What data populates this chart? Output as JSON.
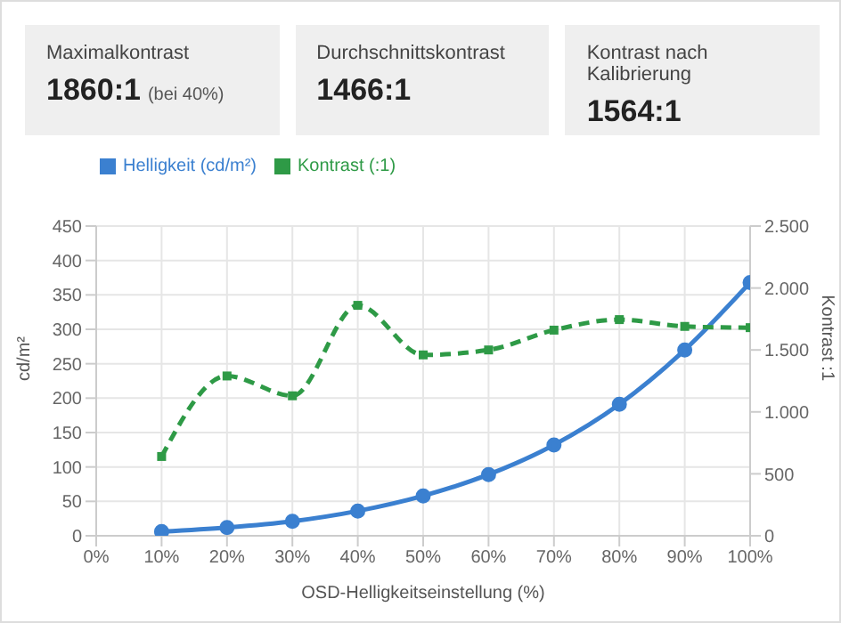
{
  "chart_data": [
    {
      "type": "other",
      "categories": [
        "Maximalkontrast",
        "Durchschnittskontrast",
        "Kontrast nach Kalibrierung"
      ],
      "value_labels": [
        "1860:1",
        "1466:1",
        "1564:1"
      ],
      "annotations": [
        "(bei 40%)"
      ]
    },
    {
      "type": "line",
      "x": [
        10,
        20,
        30,
        40,
        50,
        60,
        70,
        80,
        90,
        100
      ],
      "xlabel": "OSD-Helligkeitseinstellung (%)",
      "ylabel": "cd/m²",
      "y2label": "Kontrast :1",
      "series": [
        {
          "name": "Helligkeit (cd/m²)",
          "color": "#3b80d0",
          "values": [
            6,
            12,
            21,
            36,
            58,
            89,
            132,
            191,
            270,
            368
          ],
          "marker": "circle",
          "line_style": "solid"
        },
        {
          "name": "Kontrast (:1)",
          "color": "#2e9a46",
          "axis": "y2",
          "values": [
            640,
            1290,
            1130,
            1860,
            1460,
            1500,
            1660,
            1745,
            1690,
            1680
          ],
          "marker": "square",
          "line_style": "dashed"
        }
      ],
      "xlim": [
        0,
        100
      ],
      "xticks": [
        {
          "value": 0,
          "label": "0%"
        },
        {
          "value": 10,
          "label": "10%"
        },
        {
          "value": 20,
          "label": "20%"
        },
        {
          "value": 30,
          "label": "30%"
        },
        {
          "value": 40,
          "label": "40%"
        },
        {
          "value": 50,
          "label": "50%"
        },
        {
          "value": 60,
          "label": "60%"
        },
        {
          "value": 70,
          "label": "70%"
        },
        {
          "value": 80,
          "label": "80%"
        },
        {
          "value": 90,
          "label": "90%"
        },
        {
          "value": 100,
          "label": "100%"
        }
      ],
      "ylim": [
        0,
        450
      ],
      "yticks": [
        0,
        50,
        100,
        150,
        200,
        250,
        300,
        350,
        400,
        450
      ],
      "y2lim": [
        0,
        2500
      ],
      "y2ticks": [
        0,
        {
          "value": 500,
          "label": "500"
        },
        {
          "value": 1000,
          "label": "1.000"
        },
        {
          "value": 1500,
          "label": "1.500"
        },
        {
          "value": 2000,
          "label": "2.000"
        },
        {
          "value": 2500,
          "label": "2.500"
        }
      ],
      "grid": true,
      "legend": "top left"
    }
  ]
}
